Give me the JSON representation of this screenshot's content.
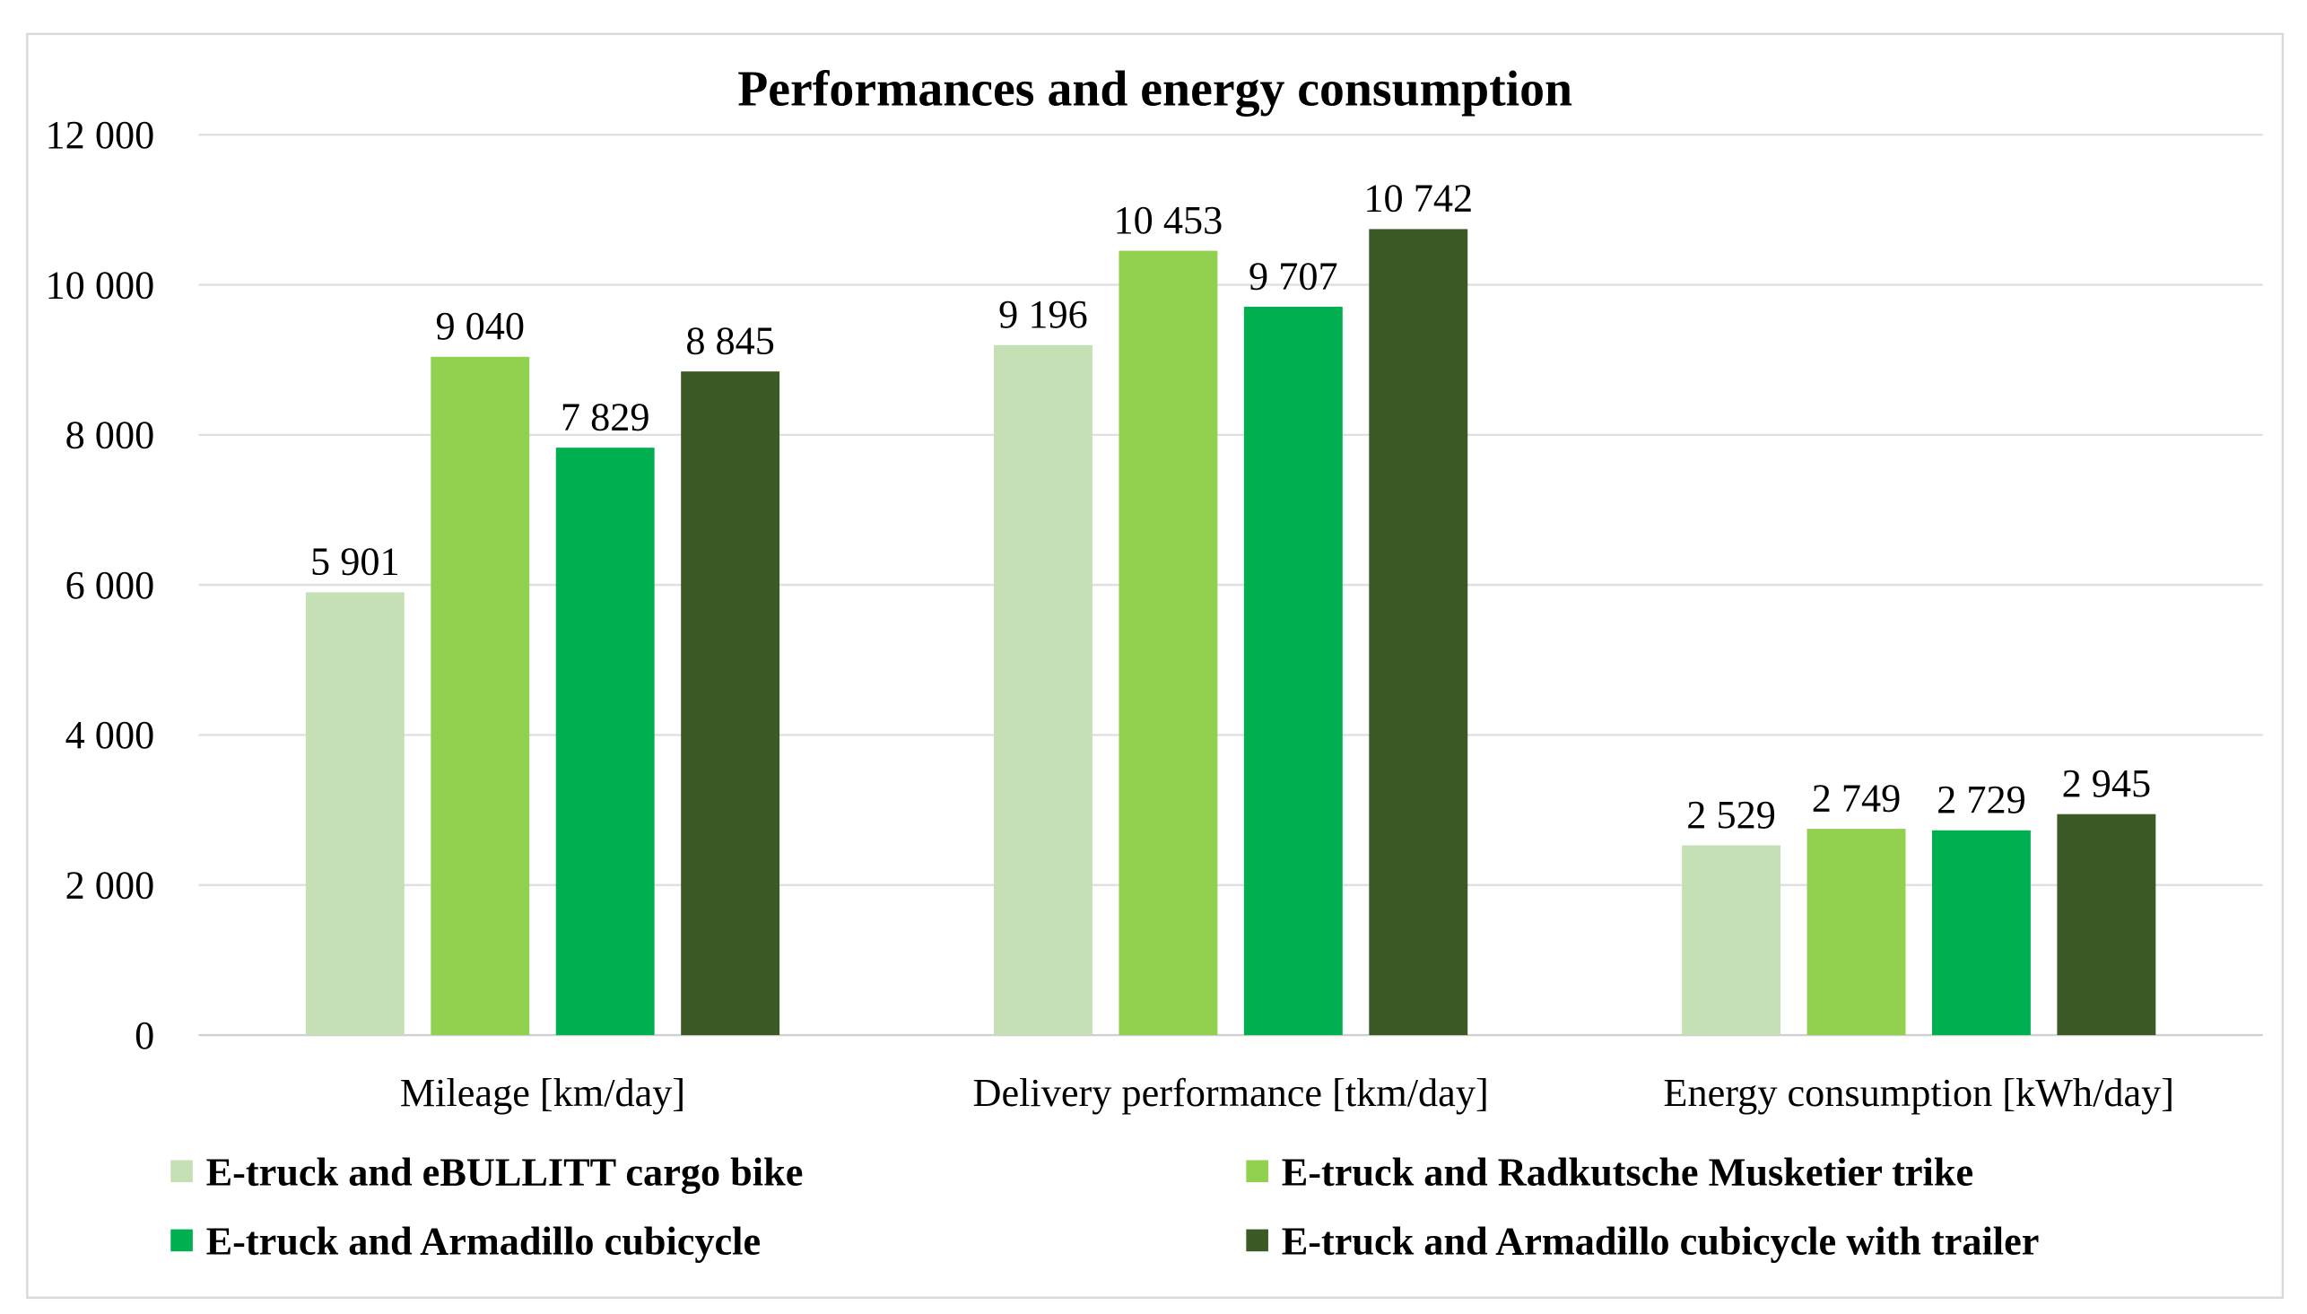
{
  "chart_data": {
    "type": "bar",
    "title": "Performances and energy consumption",
    "xlabel": "",
    "ylabel": "",
    "ylim": [
      0,
      12000
    ],
    "yticks": [
      0,
      2000,
      4000,
      6000,
      8000,
      10000,
      12000
    ],
    "ytick_labels": [
      "0",
      "2 000",
      "4 000",
      "6 000",
      "8 000",
      "10 000",
      "12 000"
    ],
    "grid": true,
    "legend_position": "bottom",
    "categories": [
      "Mileage [km/day]",
      "Delivery performance [tkm/day]",
      "Energy consumption [kWh/day]"
    ],
    "series": [
      {
        "name": "E-truck and eBULLITT cargo bike",
        "color": "#C5E0B4",
        "values": [
          5901,
          9196,
          2529
        ],
        "labels": [
          "5 901",
          "9 196",
          "2 529"
        ]
      },
      {
        "name": "E-truck and Radkutsche Musketier trike",
        "color": "#92D050",
        "values": [
          9040,
          10453,
          2749
        ],
        "labels": [
          "9 040",
          "10 453",
          "2 749"
        ]
      },
      {
        "name": "E-truck and Armadillo cubicycle",
        "color": "#00B050",
        "values": [
          7829,
          9707,
          2729
        ],
        "labels": [
          "7 829",
          "9 707",
          "2 729"
        ]
      },
      {
        "name": "E-truck and Armadillo cubicycle with trailer",
        "color": "#3B5A26",
        "values": [
          8845,
          10742,
          2945
        ],
        "labels": [
          "8 845",
          "10 742",
          "2 945"
        ]
      }
    ]
  }
}
